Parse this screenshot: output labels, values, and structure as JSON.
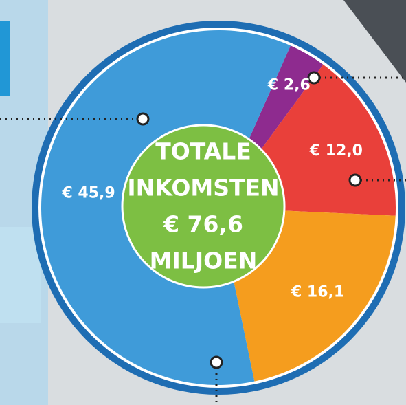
{
  "chart_data": {
    "type": "pie",
    "categories": [
      null,
      null,
      null,
      null
    ],
    "values": [
      2.6,
      12.0,
      16.1,
      45.9
    ],
    "value_labels": [
      "€ 2,6",
      "€ 12,0",
      "€ 16,1",
      "€ 45,9"
    ],
    "colors": [
      "#8e2b8f",
      "#e9403a",
      "#f59d1e",
      "#3f9bd9"
    ],
    "center_text": [
      "TOTALE",
      "INKOMSTEN",
      "€ 76,6",
      "MILJOEN"
    ],
    "center_color": "#7dbf43"
  }
}
